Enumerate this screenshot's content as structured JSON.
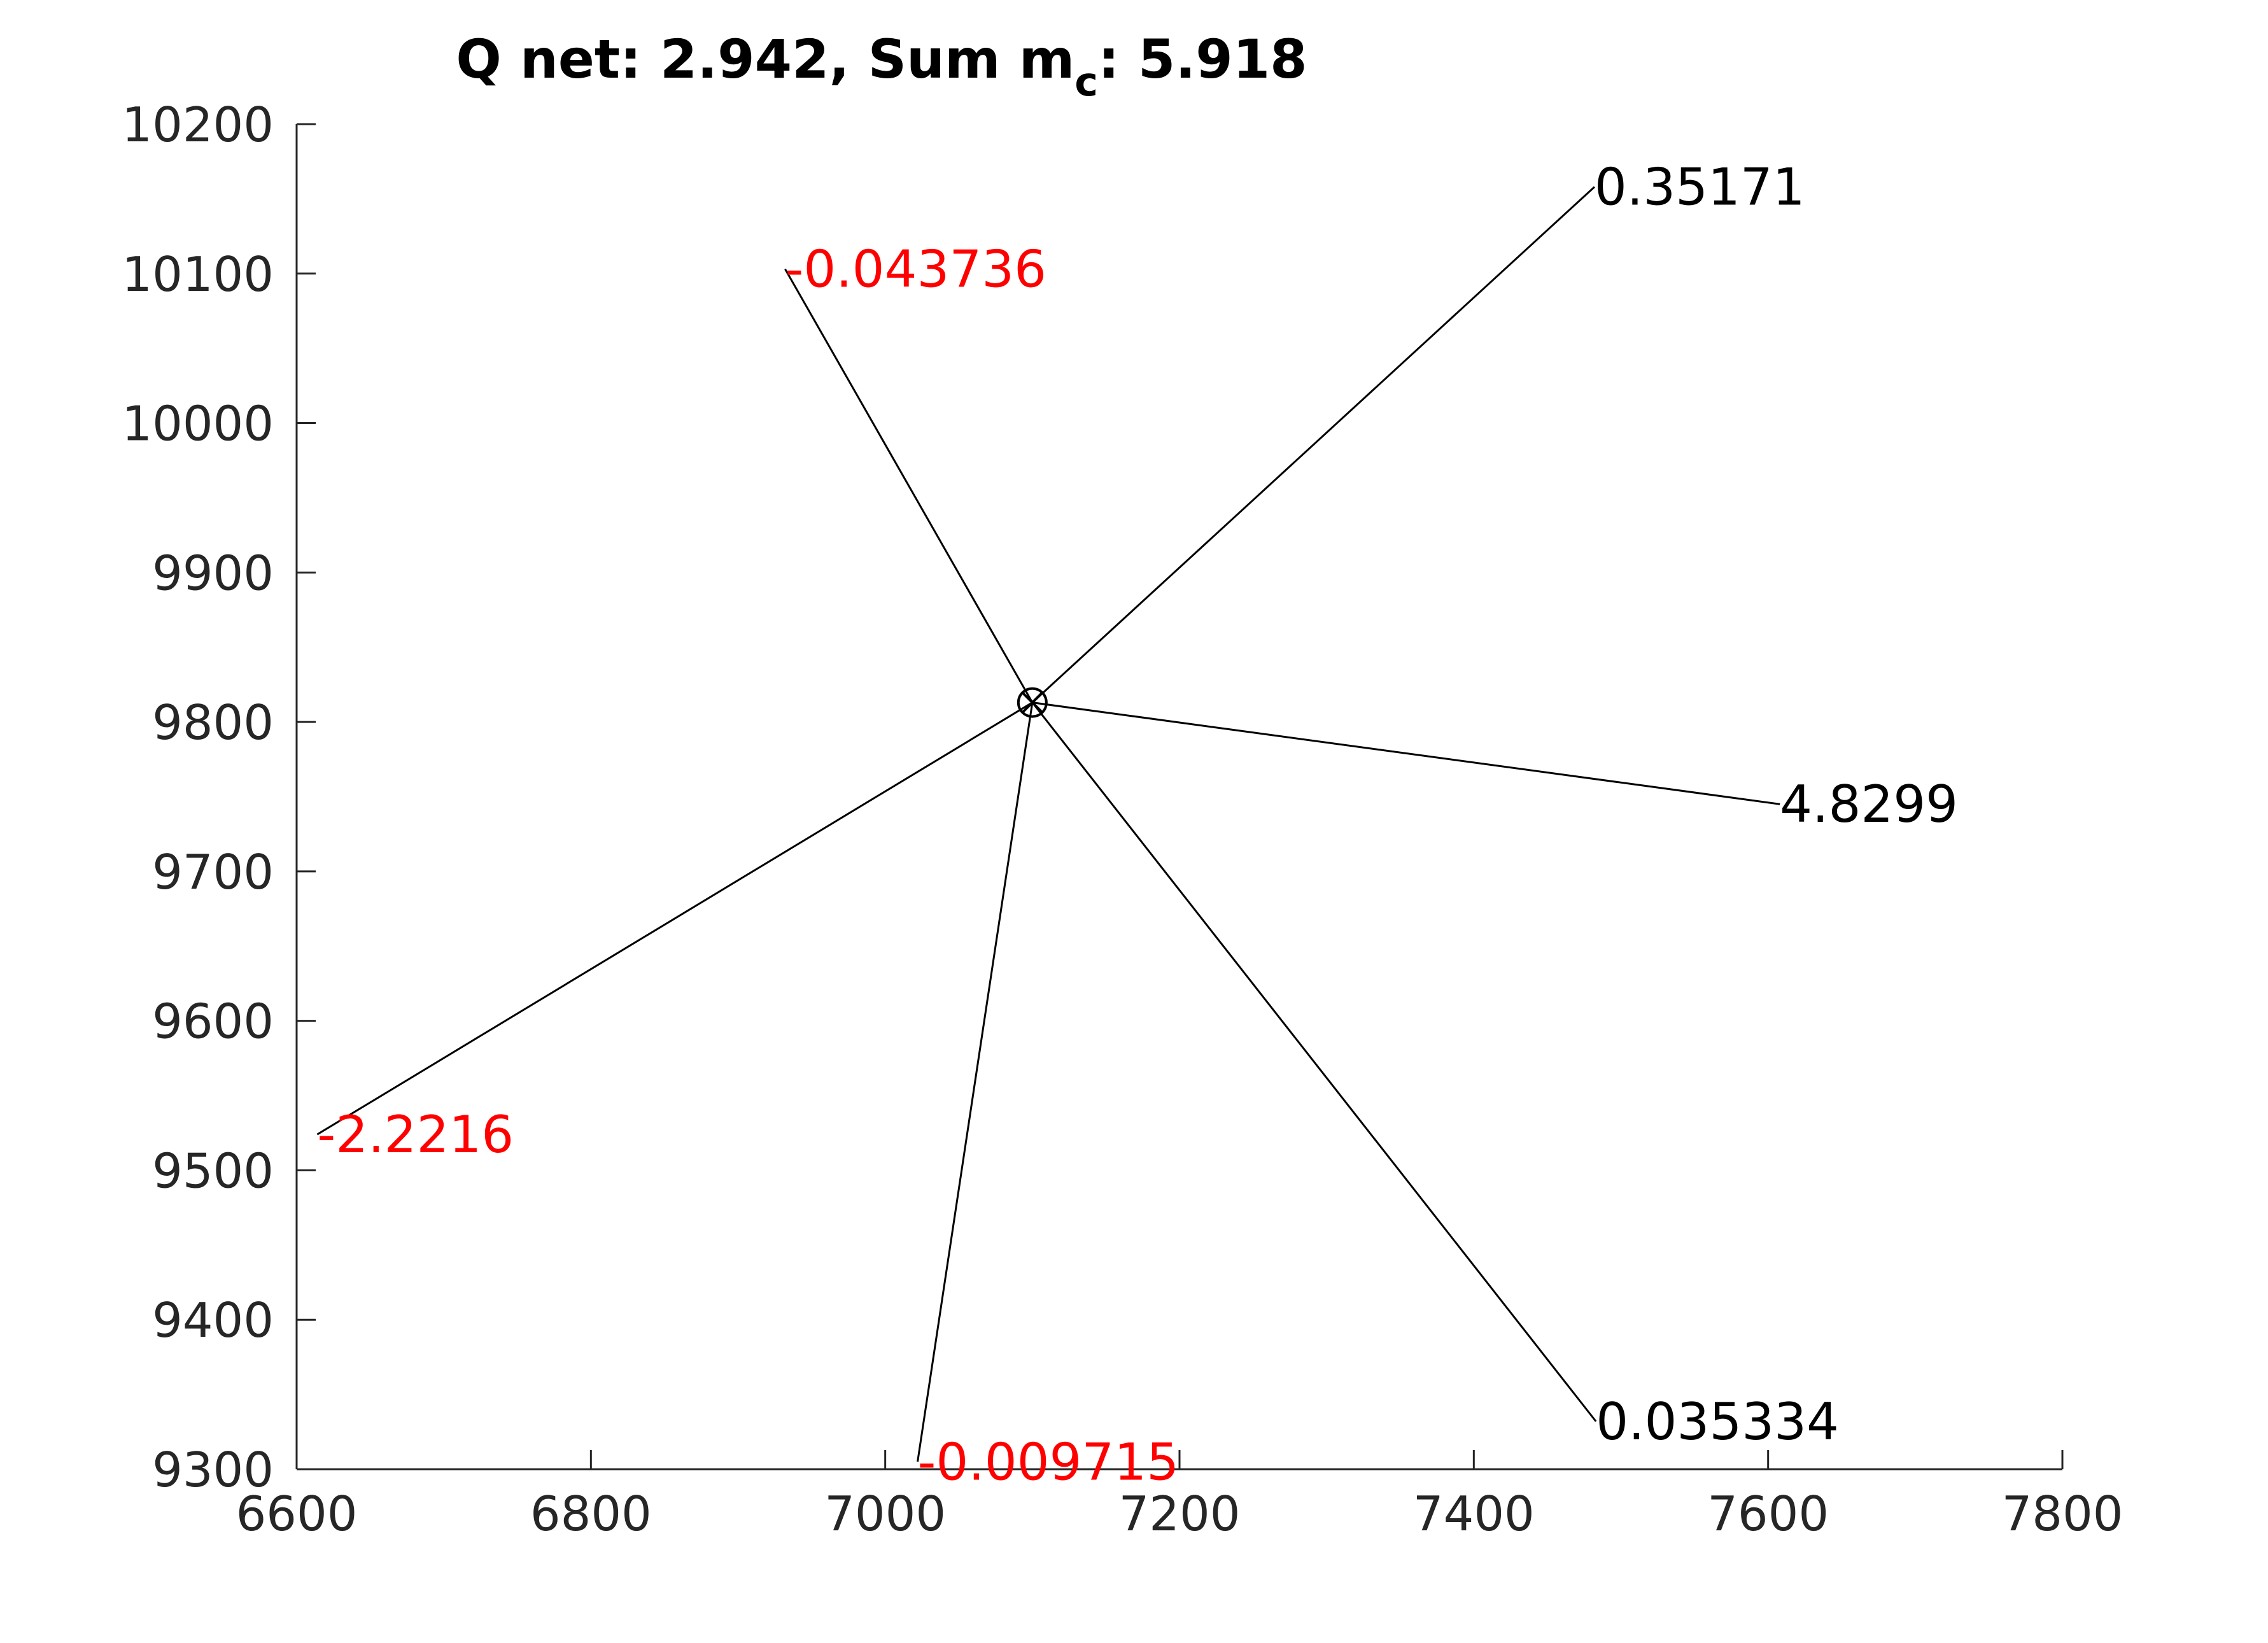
{
  "chart_data": {
    "type": "scatter",
    "title": {
      "prefix": "Q net: 2.942, Sum m",
      "subscript": "c",
      "suffix": ": 5.918"
    },
    "xlabel": "",
    "ylabel": "",
    "xlim": [
      6600,
      7800
    ],
    "ylim": [
      9300,
      10200
    ],
    "x_ticks": [
      "6600",
      "6800",
      "7000",
      "7200",
      "7400",
      "7600",
      "7800"
    ],
    "y_ticks": [
      "9300",
      "9400",
      "9500",
      "9600",
      "9700",
      "9800",
      "9900",
      "10000",
      "10100",
      "10200"
    ],
    "grid": false,
    "center": {
      "x": 7100,
      "y": 9813
    },
    "points": [
      {
        "x": 7482,
        "y": 10158,
        "label": "0.35171",
        "color": "#000000"
      },
      {
        "x": 6932,
        "y": 10103,
        "label": "-0.043736",
        "color": "#ff0000"
      },
      {
        "x": 7608,
        "y": 9745,
        "label": "4.8299",
        "color": "#000000"
      },
      {
        "x": 6614,
        "y": 9524,
        "label": "-2.2216",
        "color": "#ff0000"
      },
      {
        "x": 7483,
        "y": 9332,
        "label": "0.035334",
        "color": "#000000"
      },
      {
        "x": 7022,
        "y": 9305,
        "label": "-0.009715",
        "color": "#ff0000"
      }
    ]
  }
}
